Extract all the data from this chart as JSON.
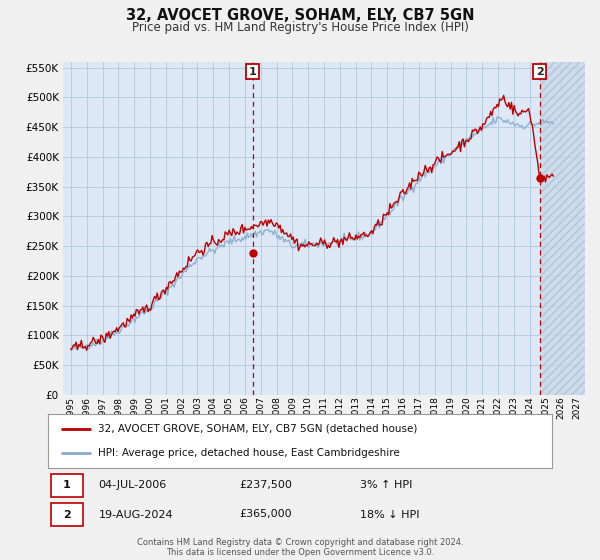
{
  "title": "32, AVOCET GROVE, SOHAM, ELY, CB7 5GN",
  "subtitle": "Price paid vs. HM Land Registry's House Price Index (HPI)",
  "bg_color": "#f0f0f0",
  "plot_bg_color": "#dce8f5",
  "hatch_color": "#c0d0e8",
  "grid_color": "#b8ccdf",
  "red_color": "#bb0000",
  "blue_color": "#88aacc",
  "ylim": [
    0,
    560000
  ],
  "yticks": [
    0,
    50000,
    100000,
    150000,
    200000,
    250000,
    300000,
    350000,
    400000,
    450000,
    500000,
    550000
  ],
  "ytick_labels": [
    "£0",
    "£50K",
    "£100K",
    "£150K",
    "£200K",
    "£250K",
    "£300K",
    "£350K",
    "£400K",
    "£450K",
    "£500K",
    "£550K"
  ],
  "xmin_year": 1994.5,
  "xmax_year": 2027.5,
  "xticks_years": [
    1995,
    1996,
    1997,
    1998,
    1999,
    2000,
    2001,
    2002,
    2003,
    2004,
    2005,
    2006,
    2007,
    2008,
    2009,
    2010,
    2011,
    2012,
    2013,
    2014,
    2015,
    2016,
    2017,
    2018,
    2019,
    2020,
    2021,
    2022,
    2023,
    2024,
    2025,
    2026,
    2027
  ],
  "marker1_x": 2006.5,
  "marker1_y": 237500,
  "marker1_label": "1",
  "marker1_date": "04-JUL-2006",
  "marker1_price": "£237,500",
  "marker1_hpi": "3% ↑ HPI",
  "marker2_x": 2024.63,
  "marker2_y": 365000,
  "marker2_label": "2",
  "marker2_date": "19-AUG-2024",
  "marker2_price": "£365,000",
  "marker2_hpi": "18% ↓ HPI",
  "hatch_start": 2024.63,
  "legend_red": "32, AVOCET GROVE, SOHAM, ELY, CB7 5GN (detached house)",
  "legend_blue": "HPI: Average price, detached house, East Cambridgeshire",
  "footer1": "Contains HM Land Registry data © Crown copyright and database right 2024.",
  "footer2": "This data is licensed under the Open Government Licence v3.0."
}
